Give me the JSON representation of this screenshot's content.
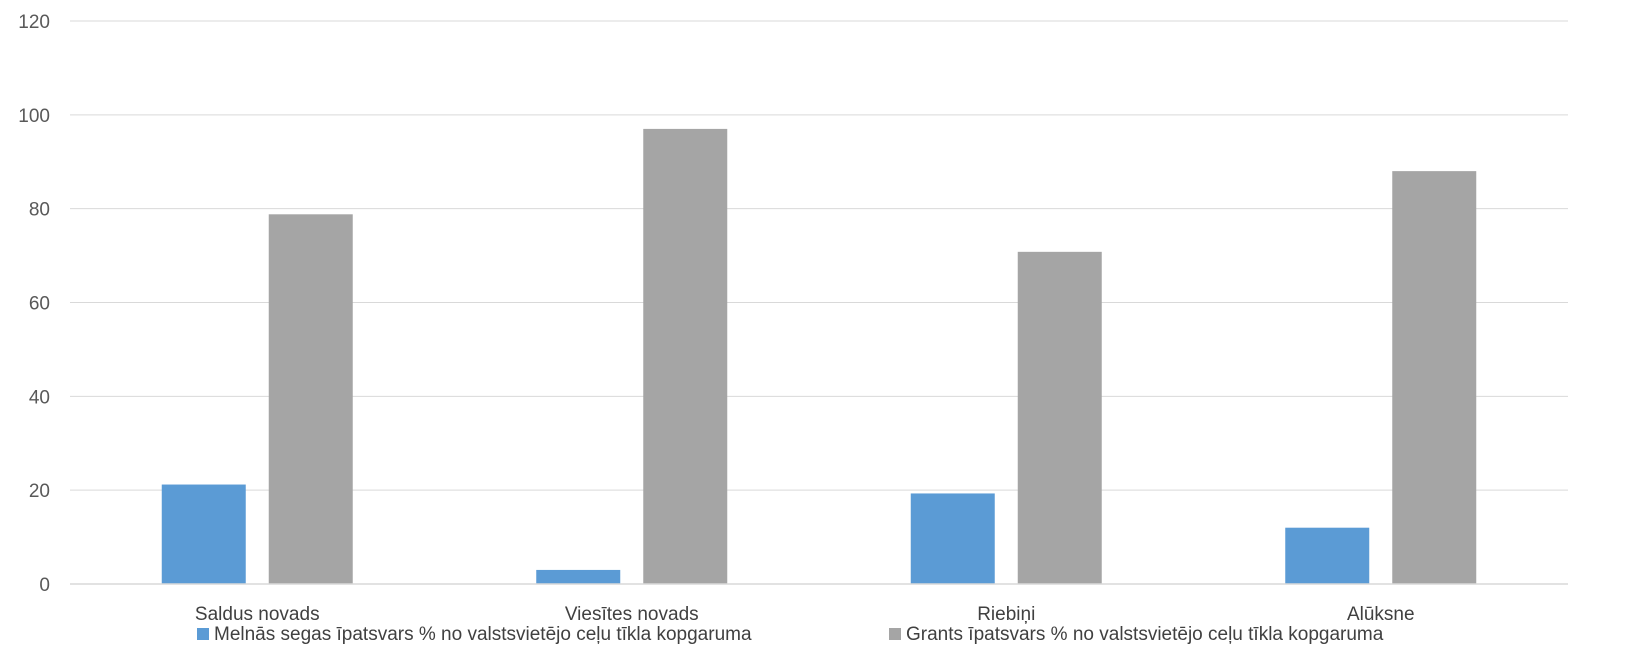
{
  "chart_data": {
    "type": "bar",
    "categories": [
      "Saldus novads",
      "Viesītes novads",
      "Riebiņi",
      "Alūksne"
    ],
    "series": [
      {
        "name": "Melnās segas īpatsvars % no valstsvietējo ceļu tīkla kopgaruma",
        "values": [
          21.2,
          3.0,
          19.3,
          12.0
        ],
        "color": "#5b9bd5"
      },
      {
        "name": "Grants īpatsvars % no valstsvietējo ceļu tīkla kopgaruma",
        "values": [
          78.8,
          97.0,
          70.8,
          88.0
        ],
        "color": "#a5a5a5"
      }
    ],
    "ylim": [
      0,
      120
    ],
    "yticks": [
      "0",
      "20",
      "40",
      "60",
      "80",
      "100",
      "120"
    ],
    "grid": true,
    "legend_position": "bottom"
  }
}
